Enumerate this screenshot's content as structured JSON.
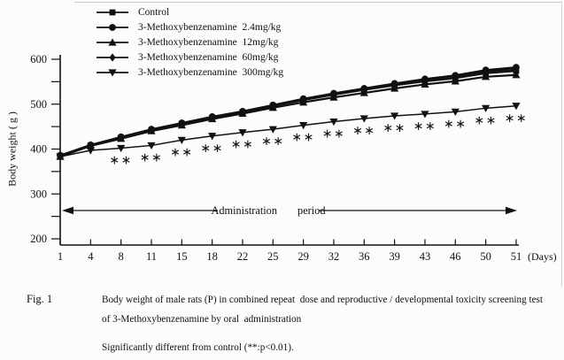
{
  "figure": {
    "fig_label": "Fig. 1",
    "caption_line1": "Body weight of male rats (P) in combined repeat  dose and reproductive / developmental toxicity screening test",
    "caption_line2": "of 3-Methoxybenzenamine by oral  administration",
    "caption_note": "Significantly different from control (**:p<0.01)."
  },
  "legend": {
    "items": [
      {
        "label": "Control",
        "marker": "square"
      },
      {
        "label": "3-Methoxybenzenamine  2.4mg/kg",
        "marker": "circle"
      },
      {
        "label": "3-Methoxybenzenamine  12mg/kg",
        "marker": "triangle-up"
      },
      {
        "label": "3-Methoxybenzenamine  60mg/kg",
        "marker": "diamond"
      },
      {
        "label": "3-Methoxybenzenamine  300mg/kg",
        "marker": "triangle-down"
      }
    ]
  },
  "chart_data": {
    "type": "line",
    "title": "",
    "ylabel": "Body weight ( g )",
    "x_unit": "(Days)",
    "categories": [
      1,
      4,
      8,
      11,
      15,
      18,
      22,
      25,
      29,
      32,
      36,
      39,
      43,
      46,
      50,
      51
    ],
    "ylim": [
      200,
      600
    ],
    "yticks_major": [
      200,
      300,
      400,
      500,
      600
    ],
    "ytick_minor_step": 50,
    "grid": false,
    "legend_position": "top-left",
    "series": [
      {
        "name": "Control",
        "marker": "square",
        "values": [
          385,
          408,
          425,
          442,
          456,
          470,
          482,
          496,
          509,
          521,
          532,
          542,
          551,
          558,
          569,
          574
        ]
      },
      {
        "name": "3-Methoxybenzenamine 2.4mg/kg",
        "marker": "circle",
        "values": [
          386,
          409,
          427,
          444,
          458,
          472,
          484,
          498,
          512,
          524,
          535,
          546,
          556,
          564,
          576,
          582
        ]
      },
      {
        "name": "3-Methoxybenzenamine 12mg/kg",
        "marker": "triangle-up",
        "values": [
          383,
          407,
          423,
          440,
          453,
          467,
          479,
          492,
          504,
          515,
          525,
          535,
          544,
          551,
          561,
          565
        ]
      },
      {
        "name": "3-Methoxybenzenamine 60mg/kg",
        "marker": "diamond",
        "values": [
          385,
          409,
          426,
          443,
          457,
          471,
          483,
          497,
          511,
          523,
          534,
          544,
          554,
          562,
          573,
          578
        ]
      },
      {
        "name": "3-Methoxybenzenamine 300mg/kg",
        "marker": "triangle-down",
        "values": [
          383,
          397,
          402,
          408,
          420,
          429,
          437,
          444,
          453,
          461,
          468,
          474,
          478,
          483,
          491,
          496
        ]
      }
    ],
    "significance": {
      "series": "3-Methoxybenzenamine 300mg/kg",
      "marker": "∗∗",
      "days": [
        8,
        11,
        15,
        18,
        22,
        25,
        29,
        32,
        36,
        39,
        43,
        46,
        50,
        51
      ]
    },
    "annotation": {
      "label": "Administration period"
    },
    "colors": {
      "ink": "#111111",
      "paper": "#fcfcfa"
    }
  }
}
